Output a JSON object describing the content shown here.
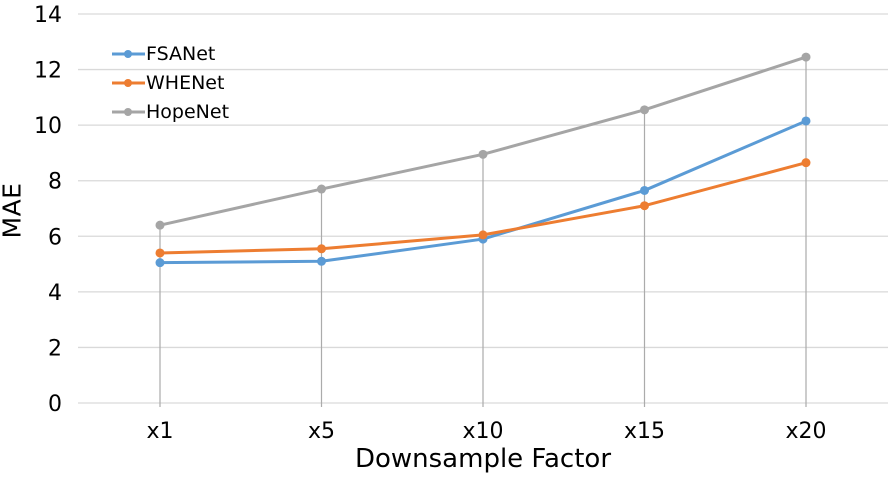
{
  "chart_data": {
    "type": "line",
    "title": "",
    "xlabel": "Downsample Factor",
    "ylabel": "MAE",
    "categories": [
      "x1",
      "x5",
      "x10",
      "x15",
      "x20"
    ],
    "series": [
      {
        "name": "FSANet",
        "color": "#5B9BD5",
        "values": [
          5.05,
          5.1,
          5.9,
          7.65,
          10.15
        ]
      },
      {
        "name": "WHENet",
        "color": "#ED7D31",
        "values": [
          5.4,
          5.55,
          6.05,
          7.1,
          8.65
        ]
      },
      {
        "name": "HopeNet",
        "color": "#A5A5A5",
        "values": [
          6.4,
          7.7,
          8.95,
          10.55,
          12.45
        ]
      }
    ],
    "ylim": [
      0,
      14
    ],
    "yticks": [
      0,
      2,
      4,
      6,
      8,
      10,
      12,
      14
    ],
    "grid": "horizontal",
    "category_stems": true,
    "legend_position": "top-left",
    "colors": {
      "gridline": "#D9D9D9",
      "stem": "#ABABAB",
      "tick_text": "#000000",
      "background": "#FFFFFF"
    }
  }
}
